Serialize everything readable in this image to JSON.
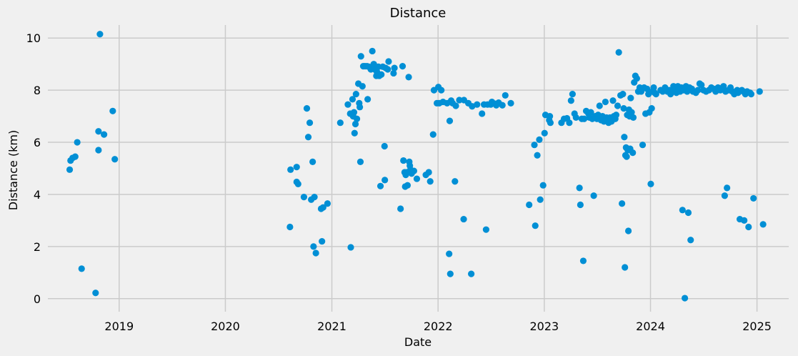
{
  "chart_data": {
    "type": "scatter",
    "title": "Distance",
    "xlabel": "Date",
    "ylabel": "Distance (km)",
    "x_is_date": true,
    "xlim": [
      "2018-05-01",
      "2025-04-20"
    ],
    "ylim": [
      -0.5,
      10.5
    ],
    "xticks": [
      "2019-01-01",
      "2020-01-01",
      "2021-01-01",
      "2022-01-01",
      "2023-01-01",
      "2024-01-01",
      "2025-01-01"
    ],
    "xtick_labels": [
      "2019",
      "2020",
      "2021",
      "2022",
      "2023",
      "2024",
      "2025"
    ],
    "yticks": [
      0,
      2,
      4,
      6,
      8,
      10
    ],
    "ytick_labels": [
      "0",
      "2",
      "4",
      "6",
      "8",
      "10"
    ],
    "grid": true,
    "marker_color": "#008fd5",
    "background": "#f0f0f0",
    "series": [
      {
        "points": [
          [
            "2018-07-15",
            4.95
          ],
          [
            "2018-07-18",
            5.3
          ],
          [
            "2018-07-25",
            5.4
          ],
          [
            "2018-08-03",
            5.45
          ],
          [
            "2018-08-10",
            6.0
          ],
          [
            "2018-08-25",
            1.15
          ],
          [
            "2018-10-12",
            0.22
          ],
          [
            "2018-10-22",
            6.42
          ],
          [
            "2018-10-22",
            5.7
          ],
          [
            "2018-10-27",
            10.15
          ],
          [
            "2018-11-10",
            6.3
          ],
          [
            "2018-12-10",
            7.2
          ],
          [
            "2018-12-17",
            5.35
          ],
          [
            "2020-08-10",
            2.75
          ],
          [
            "2020-08-12",
            4.95
          ],
          [
            "2020-09-02",
            5.05
          ],
          [
            "2020-09-02",
            4.48
          ],
          [
            "2020-09-07",
            4.4
          ],
          [
            "2020-09-27",
            3.9
          ],
          [
            "2020-10-07",
            7.3
          ],
          [
            "2020-10-12",
            6.2
          ],
          [
            "2020-10-17",
            6.75
          ],
          [
            "2020-10-22",
            3.8
          ],
          [
            "2020-10-27",
            5.25
          ],
          [
            "2020-10-30",
            2.0
          ],
          [
            "2020-11-02",
            3.9
          ],
          [
            "2020-11-07",
            1.75
          ],
          [
            "2020-11-25",
            3.45
          ],
          [
            "2020-11-28",
            2.2
          ],
          [
            "2020-12-02",
            3.5
          ],
          [
            "2020-12-17",
            3.65
          ],
          [
            "2021-01-30",
            6.75
          ],
          [
            "2021-02-25",
            7.45
          ],
          [
            "2021-03-05",
            7.1
          ],
          [
            "2021-03-07",
            1.97
          ],
          [
            "2021-03-13",
            7.65
          ],
          [
            "2021-03-15",
            7.0
          ],
          [
            "2021-03-18",
            7.15
          ],
          [
            "2021-03-20",
            6.35
          ],
          [
            "2021-03-23",
            6.7
          ],
          [
            "2021-03-25",
            7.85
          ],
          [
            "2021-03-28",
            6.9
          ],
          [
            "2021-04-02",
            8.25
          ],
          [
            "2021-04-05",
            7.5
          ],
          [
            "2021-04-07",
            7.35
          ],
          [
            "2021-04-09",
            5.25
          ],
          [
            "2021-04-11",
            9.3
          ],
          [
            "2021-04-16",
            8.15
          ],
          [
            "2021-04-19",
            8.92
          ],
          [
            "2021-04-25",
            8.92
          ],
          [
            "2021-05-02",
            8.92
          ],
          [
            "2021-05-04",
            7.65
          ],
          [
            "2021-05-08",
            8.9
          ],
          [
            "2021-05-15",
            8.8
          ],
          [
            "2021-05-20",
            9.5
          ],
          [
            "2021-05-25",
            9.0
          ],
          [
            "2021-05-28",
            8.8
          ],
          [
            "2021-06-03",
            8.55
          ],
          [
            "2021-06-05",
            8.7
          ],
          [
            "2021-06-10",
            8.9
          ],
          [
            "2021-06-13",
            8.55
          ],
          [
            "2021-06-17",
            4.32
          ],
          [
            "2021-06-20",
            8.6
          ],
          [
            "2021-06-25",
            8.9
          ],
          [
            "2021-07-01",
            5.85
          ],
          [
            "2021-07-02",
            4.55
          ],
          [
            "2021-07-05",
            8.85
          ],
          [
            "2021-07-12",
            8.8
          ],
          [
            "2021-07-15",
            9.1
          ],
          [
            "2021-08-01",
            8.65
          ],
          [
            "2021-08-04",
            8.85
          ],
          [
            "2021-08-25",
            3.45
          ],
          [
            "2021-09-01",
            8.92
          ],
          [
            "2021-09-04",
            5.3
          ],
          [
            "2021-09-08",
            4.85
          ],
          [
            "2021-09-10",
            4.3
          ],
          [
            "2021-09-12",
            4.75
          ],
          [
            "2021-09-15",
            4.85
          ],
          [
            "2021-09-18",
            4.35
          ],
          [
            "2021-09-22",
            8.5
          ],
          [
            "2021-09-24",
            5.25
          ],
          [
            "2021-09-26",
            5.1
          ],
          [
            "2021-09-28",
            4.95
          ],
          [
            "2021-10-02",
            4.8
          ],
          [
            "2021-10-10",
            4.9
          ],
          [
            "2021-10-20",
            4.6
          ],
          [
            "2021-11-20",
            4.75
          ],
          [
            "2021-11-30",
            4.85
          ],
          [
            "2021-12-05",
            4.5
          ],
          [
            "2021-12-15",
            6.3
          ],
          [
            "2021-12-18",
            8.0
          ],
          [
            "2021-12-28",
            7.5
          ],
          [
            "2022-01-02",
            8.12
          ],
          [
            "2022-01-05",
            7.5
          ],
          [
            "2022-01-12",
            8.0
          ],
          [
            "2022-01-18",
            7.55
          ],
          [
            "2022-02-01",
            7.5
          ],
          [
            "2022-02-08",
            1.72
          ],
          [
            "2022-02-10",
            6.82
          ],
          [
            "2022-02-12",
            0.95
          ],
          [
            "2022-02-15",
            7.6
          ],
          [
            "2022-02-20",
            7.5
          ],
          [
            "2022-02-28",
            4.5
          ],
          [
            "2022-03-03",
            7.4
          ],
          [
            "2022-03-15",
            7.62
          ],
          [
            "2022-03-30",
            3.05
          ],
          [
            "2022-03-31",
            7.62
          ],
          [
            "2022-04-15",
            7.5
          ],
          [
            "2022-04-25",
            0.95
          ],
          [
            "2022-04-28",
            7.38
          ],
          [
            "2022-05-15",
            7.45
          ],
          [
            "2022-06-01",
            7.1
          ],
          [
            "2022-06-08",
            7.45
          ],
          [
            "2022-06-15",
            2.65
          ],
          [
            "2022-06-20",
            7.45
          ],
          [
            "2022-07-01",
            7.45
          ],
          [
            "2022-07-05",
            7.55
          ],
          [
            "2022-07-15",
            7.48
          ],
          [
            "2022-07-20",
            7.42
          ],
          [
            "2022-07-28",
            7.52
          ],
          [
            "2022-08-10",
            7.42
          ],
          [
            "2022-08-20",
            7.8
          ],
          [
            "2022-09-08",
            7.5
          ],
          [
            "2022-11-10",
            3.6
          ],
          [
            "2022-11-28",
            5.9
          ],
          [
            "2022-12-01",
            2.8
          ],
          [
            "2022-12-08",
            5.5
          ],
          [
            "2022-12-15",
            6.1
          ],
          [
            "2022-12-18",
            3.8
          ],
          [
            "2022-12-28",
            4.35
          ],
          [
            "2023-01-02",
            6.35
          ],
          [
            "2023-01-05",
            7.05
          ],
          [
            "2023-01-18",
            6.85
          ],
          [
            "2023-01-20",
            7.0
          ],
          [
            "2023-01-22",
            6.75
          ],
          [
            "2023-03-01",
            6.75
          ],
          [
            "2023-03-10",
            6.9
          ],
          [
            "2023-03-20",
            6.92
          ],
          [
            "2023-03-28",
            6.75
          ],
          [
            "2023-04-03",
            7.6
          ],
          [
            "2023-04-08",
            7.85
          ],
          [
            "2023-04-15",
            7.1
          ],
          [
            "2023-04-20",
            6.95
          ],
          [
            "2023-05-02",
            4.25
          ],
          [
            "2023-05-05",
            3.6
          ],
          [
            "2023-05-10",
            6.9
          ],
          [
            "2023-05-15",
            1.45
          ],
          [
            "2023-05-18",
            6.9
          ],
          [
            "2023-05-25",
            7.2
          ],
          [
            "2023-06-02",
            7.1
          ],
          [
            "2023-06-05",
            6.95
          ],
          [
            "2023-06-10",
            7.15
          ],
          [
            "2023-06-15",
            6.9
          ],
          [
            "2023-06-20",
            3.95
          ],
          [
            "2023-06-25",
            7.0
          ],
          [
            "2023-07-01",
            6.9
          ],
          [
            "2023-07-05",
            7.05
          ],
          [
            "2023-07-10",
            7.4
          ],
          [
            "2023-07-15",
            6.85
          ],
          [
            "2023-07-20",
            7.0
          ],
          [
            "2023-07-25",
            6.8
          ],
          [
            "2023-07-30",
            7.55
          ],
          [
            "2023-08-03",
            6.95
          ],
          [
            "2023-08-06",
            6.85
          ],
          [
            "2023-08-10",
            6.75
          ],
          [
            "2023-08-15",
            6.95
          ],
          [
            "2023-08-20",
            6.8
          ],
          [
            "2023-08-25",
            7.6
          ],
          [
            "2023-08-28",
            7.0
          ],
          [
            "2023-09-02",
            6.9
          ],
          [
            "2023-09-05",
            7.05
          ],
          [
            "2023-09-10",
            7.4
          ],
          [
            "2023-09-14",
            9.45
          ],
          [
            "2023-09-20",
            7.8
          ],
          [
            "2023-09-25",
            3.65
          ],
          [
            "2023-09-28",
            7.85
          ],
          [
            "2023-10-01",
            7.3
          ],
          [
            "2023-10-03",
            6.2
          ],
          [
            "2023-10-05",
            1.2
          ],
          [
            "2023-10-07",
            5.5
          ],
          [
            "2023-10-09",
            5.8
          ],
          [
            "2023-10-11",
            5.45
          ],
          [
            "2023-10-13",
            7.05
          ],
          [
            "2023-10-15",
            5.7
          ],
          [
            "2023-10-17",
            2.6
          ],
          [
            "2023-10-19",
            7.25
          ],
          [
            "2023-10-21",
            7.0
          ],
          [
            "2023-10-23",
            5.75
          ],
          [
            "2023-10-25",
            7.7
          ],
          [
            "2023-10-28",
            7.15
          ],
          [
            "2023-11-01",
            5.6
          ],
          [
            "2023-11-03",
            6.95
          ],
          [
            "2023-11-06",
            8.3
          ],
          [
            "2023-11-10",
            8.55
          ],
          [
            "2023-11-15",
            8.45
          ],
          [
            "2023-11-20",
            7.95
          ],
          [
            "2023-11-25",
            8.1
          ],
          [
            "2023-11-30",
            7.95
          ],
          [
            "2023-12-05",
            5.9
          ],
          [
            "2023-12-10",
            8.1
          ],
          [
            "2023-12-15",
            7.1
          ],
          [
            "2023-12-20",
            8.05
          ],
          [
            "2023-12-25",
            7.85
          ],
          [
            "2023-12-28",
            7.15
          ],
          [
            "2024-01-02",
            4.4
          ],
          [
            "2024-01-05",
            7.3
          ],
          [
            "2024-01-08",
            7.95
          ],
          [
            "2024-01-12",
            8.1
          ],
          [
            "2024-01-15",
            7.9
          ],
          [
            "2024-01-20",
            7.85
          ],
          [
            "2024-02-05",
            8.0
          ],
          [
            "2024-02-12",
            7.95
          ],
          [
            "2024-02-20",
            8.1
          ],
          [
            "2024-02-28",
            7.95
          ],
          [
            "2024-03-05",
            8.0
          ],
          [
            "2024-03-10",
            7.85
          ],
          [
            "2024-03-15",
            7.95
          ],
          [
            "2024-03-20",
            8.15
          ],
          [
            "2024-03-25",
            8.0
          ],
          [
            "2024-03-30",
            7.9
          ],
          [
            "2024-04-04",
            8.15
          ],
          [
            "2024-04-08",
            8.05
          ],
          [
            "2024-04-12",
            7.95
          ],
          [
            "2024-04-16",
            8.1
          ],
          [
            "2024-04-20",
            3.4
          ],
          [
            "2024-04-24",
            8.0
          ],
          [
            "2024-04-28",
            0.02
          ],
          [
            "2024-05-02",
            8.15
          ],
          [
            "2024-05-06",
            7.95
          ],
          [
            "2024-05-10",
            3.3
          ],
          [
            "2024-05-14",
            8.1
          ],
          [
            "2024-05-18",
            2.25
          ],
          [
            "2024-05-22",
            8.05
          ],
          [
            "2024-05-26",
            7.95
          ],
          [
            "2024-06-05",
            7.9
          ],
          [
            "2024-06-12",
            8.0
          ],
          [
            "2024-06-18",
            8.25
          ],
          [
            "2024-06-24",
            8.2
          ],
          [
            "2024-07-01",
            8.0
          ],
          [
            "2024-07-10",
            7.95
          ],
          [
            "2024-07-20",
            8.0
          ],
          [
            "2024-07-28",
            8.1
          ],
          [
            "2024-08-05",
            8.05
          ],
          [
            "2024-08-12",
            7.95
          ],
          [
            "2024-08-20",
            8.1
          ],
          [
            "2024-08-28",
            8.0
          ],
          [
            "2024-09-05",
            8.05
          ],
          [
            "2024-09-08",
            8.15
          ],
          [
            "2024-09-12",
            3.95
          ],
          [
            "2024-09-15",
            7.95
          ],
          [
            "2024-09-20",
            4.25
          ],
          [
            "2024-09-25",
            8.0
          ],
          [
            "2024-10-02",
            8.1
          ],
          [
            "2024-10-08",
            7.95
          ],
          [
            "2024-10-15",
            7.85
          ],
          [
            "2024-10-20",
            7.95
          ],
          [
            "2024-10-25",
            8.0
          ],
          [
            "2024-10-28",
            7.9
          ],
          [
            "2024-11-03",
            3.05
          ],
          [
            "2024-11-10",
            8.0
          ],
          [
            "2024-11-15",
            7.95
          ],
          [
            "2024-11-18",
            3.0
          ],
          [
            "2024-11-22",
            7.85
          ],
          [
            "2024-11-28",
            7.95
          ],
          [
            "2024-12-03",
            2.75
          ],
          [
            "2024-12-08",
            7.9
          ],
          [
            "2024-12-12",
            7.85
          ],
          [
            "2024-12-20",
            3.85
          ],
          [
            "2025-01-10",
            7.95
          ],
          [
            "2025-01-22",
            2.85
          ]
        ]
      }
    ]
  }
}
